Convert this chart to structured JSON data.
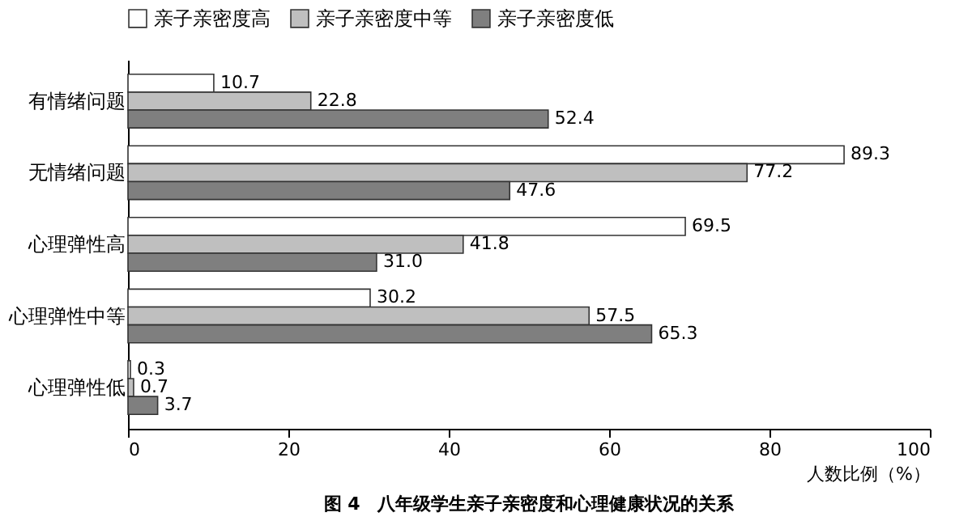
{
  "chart_data": {
    "type": "bar",
    "orientation": "horizontal",
    "title": "图 4　八年级学生亲子亲密度和心理健康状况的关系",
    "categories": [
      "有情绪问题",
      "无情绪问题",
      "心理弹性高",
      "心理弹性中等",
      "心理弹性低"
    ],
    "series": [
      {
        "name": "亲子亲密度高",
        "color": "#ffffff",
        "values": [
          10.7,
          89.3,
          69.5,
          30.2,
          0.3
        ]
      },
      {
        "name": "亲子亲密度中等",
        "color": "#bfbfbf",
        "values": [
          22.8,
          77.2,
          41.8,
          57.5,
          0.7
        ]
      },
      {
        "name": "亲子亲密度低",
        "color": "#7f7f7f",
        "values": [
          52.4,
          47.6,
          31.0,
          65.3,
          3.7
        ],
        "value_labels": [
          "52.4",
          "47.6",
          "31.0",
          "65.3",
          "3.7"
        ]
      }
    ],
    "xlabel": "人数比例（%）",
    "xlim": [
      0,
      100
    ],
    "xticks": [
      0,
      20,
      40,
      60,
      80,
      100
    ],
    "data_labels": true,
    "grid": false,
    "legend": "top"
  }
}
